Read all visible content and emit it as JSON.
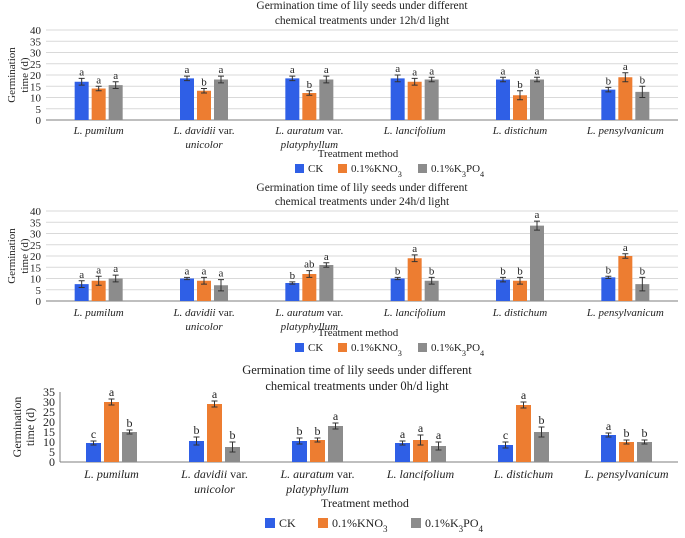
{
  "colors": {
    "ck": "#2f5fe6",
    "kno3": "#ed7d31",
    "k3po4": "#8c8c8c",
    "axis": "#7f7f7f",
    "grid": "#d9d9d9",
    "text": "#222222"
  },
  "chart_data": [
    {
      "type": "bar",
      "title_lines": [
        "Germination time of lily seeds under different",
        "chemical treatments under 12h/d light"
      ],
      "ylabel_lines": [
        "Germination",
        "time (d)"
      ],
      "xlabel": "Treatment method",
      "ylim": [
        0,
        40
      ],
      "yticks": [
        "0",
        "5",
        "10",
        "15",
        "20",
        "25",
        "30",
        "35",
        "40"
      ],
      "grid": true,
      "legend": {
        "position": "bottom",
        "labels": [
          "CK",
          "0.1%KNO3",
          "0.1%K3PO4"
        ]
      },
      "categories": [
        [
          {
            "t": "L. pumilum",
            "i": true
          }
        ],
        [
          {
            "t": "L. davidii",
            "i": true
          },
          {
            "t": " var.",
            "i": false
          },
          {
            "t": "\n",
            "i": false
          },
          {
            "t": "unicolor",
            "i": true
          }
        ],
        [
          {
            "t": "L. auratum",
            "i": true
          },
          {
            "t": " var.",
            "i": false
          },
          {
            "t": "\n",
            "i": false
          },
          {
            "t": "platyphyllum",
            "i": true
          }
        ],
        [
          {
            "t": "L. lancifolium",
            "i": true
          }
        ],
        [
          {
            "t": "L. distichum",
            "i": true
          }
        ],
        [
          {
            "t": "L. pensylvanicum",
            "i": true
          }
        ]
      ],
      "series": [
        {
          "name": "CK",
          "values": [
            17,
            18.5,
            18.5,
            18.5,
            18,
            13.5
          ],
          "errors": [
            1.5,
            1,
            1,
            1.5,
            1,
            1
          ],
          "letters": [
            "a",
            "a",
            "a",
            "a",
            "a",
            "b"
          ]
        },
        {
          "name": "0.1%KNO3",
          "values": [
            14,
            13,
            12,
            17,
            11,
            19
          ],
          "errors": [
            1,
            1,
            1,
            1.5,
            2,
            2
          ],
          "letters": [
            "a",
            "b",
            "b",
            "a",
            "b",
            "a"
          ]
        },
        {
          "name": "0.1%K3PO4",
          "values": [
            15.5,
            18,
            18,
            18,
            18,
            12.5
          ],
          "errors": [
            1.5,
            1.5,
            1.5,
            1,
            1,
            2.5
          ],
          "letters": [
            "a",
            "a",
            "a",
            "a",
            "a",
            "b"
          ]
        }
      ]
    },
    {
      "type": "bar",
      "title_lines": [
        "Germination time of lily seeds under different",
        "chemical treatments under 24h/d light"
      ],
      "ylabel_lines": [
        "Germination",
        "time (d)"
      ],
      "xlabel": "Treatment method",
      "ylim": [
        0,
        40
      ],
      "yticks": [
        "0",
        "5",
        "10",
        "15",
        "20",
        "25",
        "30",
        "35",
        "40"
      ],
      "grid": true,
      "legend": {
        "position": "bottom",
        "labels": [
          "CK",
          "0.1%KNO3",
          "0.1%K3PO4"
        ]
      },
      "categories": [
        [
          {
            "t": "L. pumilum",
            "i": true
          }
        ],
        [
          {
            "t": "L. davidii",
            "i": true
          },
          {
            "t": " var.",
            "i": false
          },
          {
            "t": "\n",
            "i": false
          },
          {
            "t": "unicolor",
            "i": true
          }
        ],
        [
          {
            "t": "L. auratum",
            "i": true
          },
          {
            "t": " var.",
            "i": false
          },
          {
            "t": "\n",
            "i": false
          },
          {
            "t": "platyphyllum",
            "i": true
          }
        ],
        [
          {
            "t": "L. lancifolium",
            "i": true
          }
        ],
        [
          {
            "t": "L. distichum",
            "i": true
          }
        ],
        [
          {
            "t": "L. pensylvanicum",
            "i": true
          }
        ]
      ],
      "series": [
        {
          "name": "CK",
          "values": [
            7.5,
            10,
            8,
            10,
            9.5,
            10.5
          ],
          "errors": [
            1.5,
            0.5,
            0.5,
            0.5,
            1,
            0.5
          ],
          "letters": [
            "a",
            "a",
            "b",
            "b",
            "b",
            "b"
          ]
        },
        {
          "name": "0.1%KNO3",
          "values": [
            9,
            9,
            12,
            19,
            9,
            20
          ],
          "errors": [
            2,
            1.5,
            1.5,
            1.5,
            1.5,
            1
          ],
          "letters": [
            "a",
            "a",
            "ab",
            "a",
            "b",
            "a"
          ]
        },
        {
          "name": "0.1%K3PO4",
          "values": [
            10,
            7,
            16,
            9,
            33.5,
            7.5
          ],
          "errors": [
            1.5,
            2.5,
            1,
            1.5,
            2,
            3
          ],
          "letters": [
            "a",
            "a",
            "a",
            "b",
            "a",
            "b"
          ]
        }
      ]
    },
    {
      "type": "bar",
      "title_lines": [
        "Germination time of lily seeds under different",
        "chemical treatments under 0h/d light"
      ],
      "ylabel_lines": [
        "Germination",
        "time (d)"
      ],
      "xlabel": "Treatment method",
      "ylim": [
        0,
        35
      ],
      "yticks": [
        "0",
        "5",
        "10",
        "15",
        "20",
        "25",
        "30",
        "35"
      ],
      "grid": false,
      "legend": {
        "position": "bottom",
        "labels": [
          "CK",
          "0.1%KNO3",
          "0.1%K3PO4"
        ]
      },
      "categories": [
        [
          {
            "t": "L. pumilum",
            "i": true
          }
        ],
        [
          {
            "t": "L. davidii",
            "i": true
          },
          {
            "t": " var.",
            "i": false
          },
          {
            "t": "\n",
            "i": false
          },
          {
            "t": "unicolor",
            "i": true
          }
        ],
        [
          {
            "t": "L. auratum",
            "i": true
          },
          {
            "t": " var.",
            "i": false
          },
          {
            "t": "\n",
            "i": false
          },
          {
            "t": "platyphyllum",
            "i": true
          }
        ],
        [
          {
            "t": "L. lancifolium",
            "i": true
          }
        ],
        [
          {
            "t": "L. distichum",
            "i": true
          }
        ],
        [
          {
            "t": "L. pensylvanicum",
            "i": true
          }
        ]
      ],
      "series": [
        {
          "name": "CK",
          "values": [
            9.5,
            10.5,
            10.5,
            9.5,
            8.5,
            13.5
          ],
          "errors": [
            1,
            2,
            1.5,
            1,
            1.5,
            1
          ],
          "letters": [
            "c",
            "b",
            "b",
            "a",
            "c",
            "a"
          ]
        },
        {
          "name": "0.1%KNO3",
          "values": [
            30,
            29,
            11,
            11,
            28.5,
            10
          ],
          "errors": [
            1.5,
            1.5,
            1,
            2.5,
            1.5,
            1
          ],
          "letters": [
            "a",
            "a",
            "b",
            "a",
            "a",
            "b"
          ]
        },
        {
          "name": "0.1%K3PO4",
          "values": [
            15,
            7.5,
            18,
            8,
            15,
            10
          ],
          "errors": [
            1,
            2.5,
            1.5,
            2,
            2.5,
            1
          ],
          "letters": [
            "b",
            "b",
            "a",
            "a",
            "b",
            "b"
          ]
        }
      ]
    }
  ]
}
